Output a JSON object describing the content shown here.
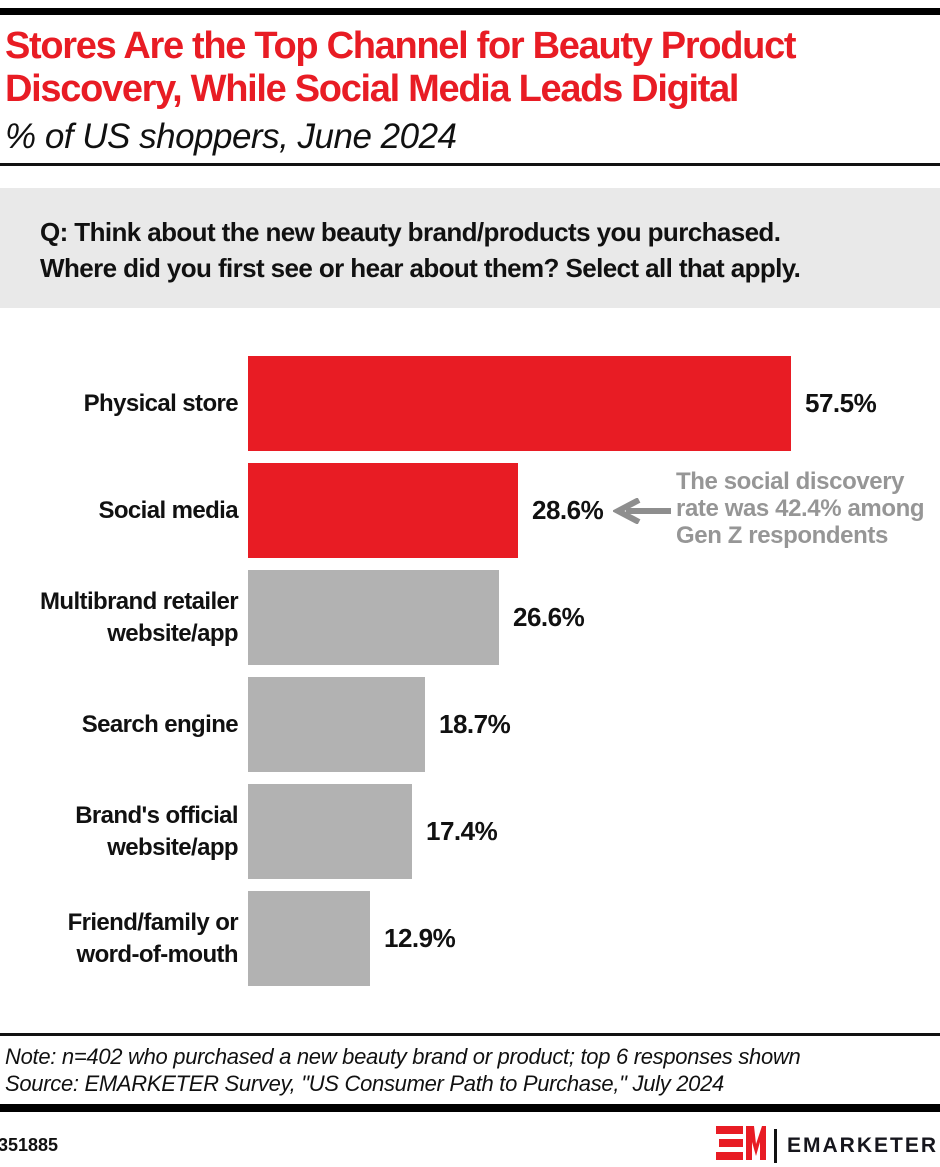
{
  "colors": {
    "accent_red": "#E81C24",
    "bar_gray": "#B2B2B2",
    "annotation_gray": "#969696",
    "question_bg": "#E9E9E9",
    "bar_black": "#000000"
  },
  "header": {
    "title_line1": "Stores Are the Top Channel for Beauty Product",
    "title_line2": "Discovery, While Social Media Leads Digital",
    "subtitle": "% of US shoppers, June 2024"
  },
  "question": {
    "line1": "Q: Think about the new beauty brand/products you purchased.",
    "line2": "Where did you first see or hear about them? Select all that apply."
  },
  "chart_data": {
    "type": "bar",
    "orientation": "horizontal",
    "title": "Stores Are the Top Channel for Beauty Product Discovery, While Social Media Leads Digital",
    "subtitle": "% of US shoppers, June 2024",
    "unit": "%",
    "xlim": [
      0,
      60
    ],
    "grid": false,
    "legend": false,
    "categories": [
      "Physical store",
      "Social media",
      "Multibrand retailer\nwebsite/app",
      "Search engine",
      "Brand's official\nwebsite/app",
      "Friend/family or\nword-of-mouth"
    ],
    "values": [
      57.5,
      28.6,
      26.6,
      18.7,
      17.4,
      12.9
    ],
    "value_labels": [
      "57.5%",
      "28.6%",
      "26.6%",
      "18.7%",
      "17.4%",
      "12.9%"
    ],
    "bar_colors": [
      "#E81C24",
      "#E81C24",
      "#B2B2B2",
      "#B2B2B2",
      "#B2B2B2",
      "#B2B2B2"
    ],
    "annotation": {
      "target_category": "Social media",
      "text_lines": [
        "The social discovery",
        "rate was 42.4% among",
        "Gen Z respondents"
      ],
      "arrow_direction": "left",
      "color": "#969696"
    }
  },
  "footnote": {
    "note": "Note: n=402 who purchased a new beauty brand or product; top 6 responses shown",
    "source": "Source: EMARKETER Survey, \"US Consumer Path to Purchase,\" July 2024"
  },
  "footer": {
    "chart_id": "351885",
    "logo_mark": "EM",
    "brand": "EMARKETER"
  }
}
